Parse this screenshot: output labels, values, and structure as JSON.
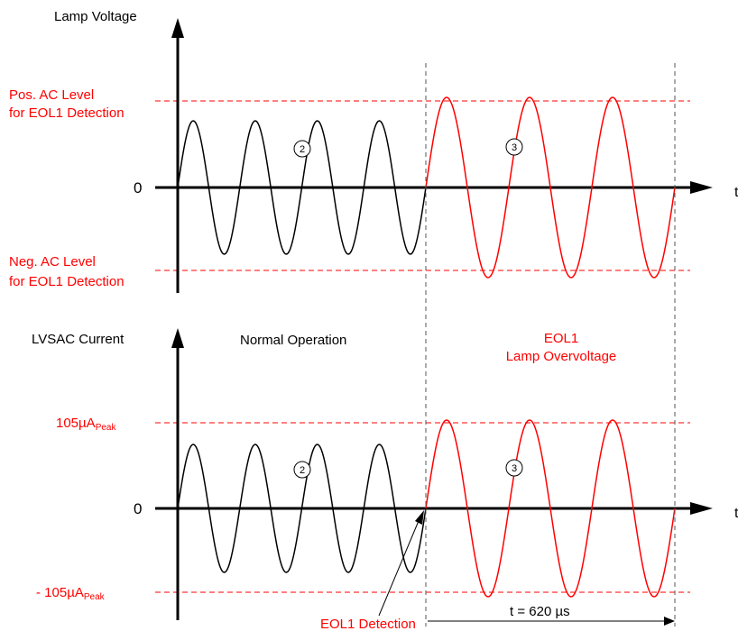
{
  "top_panel": {
    "y_axis_label": "Lamp Voltage",
    "x_axis_label": "t",
    "zero_label": "0",
    "pos_level_line1": "Pos. AC Level",
    "pos_level_line2": "for EOL1 Detection",
    "neg_level_line1": "Neg. AC Level",
    "neg_level_line2": "for EOL1 Detection",
    "normal_marker": "2",
    "eol_marker": "3"
  },
  "bottom_panel": {
    "y_axis_label": "LVSAC Current",
    "x_axis_label": "t",
    "zero_label": "0",
    "pos_level_value": "105µA",
    "pos_level_sub": "Peak",
    "neg_level_value": "- 105µA",
    "neg_level_sub": "Peak",
    "normal_marker": "2",
    "eol_marker": "3"
  },
  "regions": {
    "normal_label": "Normal Operation",
    "eol_line1": "EOL1",
    "eol_line2": "Lamp Overvoltage"
  },
  "annotations": {
    "detection_label": "EOL1 Detection",
    "duration_label": "t = 620 µs"
  },
  "colors": {
    "normal_wave": "#000000",
    "eol_wave": "#ff0000",
    "threshold_line": "#ff0000",
    "label_red": "#ff0000"
  },
  "waves": {
    "normal_cycles": 4,
    "eol_cycles": 3
  }
}
